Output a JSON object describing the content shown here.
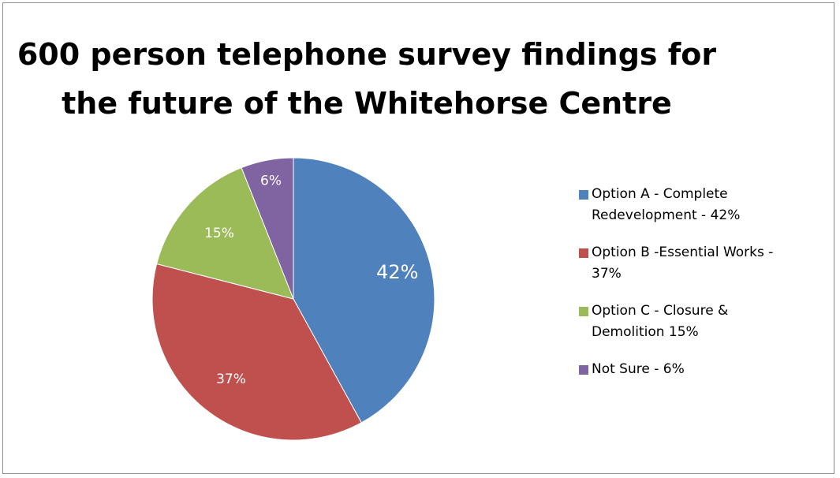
{
  "chart_data": {
    "type": "pie",
    "title_lines": [
      "600 person telephone survey findings for",
      "the future of the Whitehorse Centre"
    ],
    "slices": [
      {
        "label": "Option A - Complete Redevelopment - 42%",
        "value": 42,
        "data_label": "42%",
        "color": "#4f81bd"
      },
      {
        "label": "Option B -Essential Works - 37%",
        "value": 37,
        "data_label": "37%",
        "color": "#c0504d"
      },
      {
        "label": "Option C - Closure & Demolition 15%",
        "value": 15,
        "data_label": "15%",
        "color": "#9bbb59"
      },
      {
        "label": "Not Sure - 6%",
        "value": 6,
        "data_label": "6%",
        "color": "#8064a2"
      }
    ],
    "legend": {
      "placement": "right",
      "lines": [
        [
          "Option A - Complete",
          "Redevelopment - 42%"
        ],
        [
          "Option B -Essential Works -",
          "37%"
        ],
        [
          "Option C - Closure &",
          "Demolition 15%"
        ],
        [
          "Not Sure - 6%"
        ]
      ]
    }
  }
}
